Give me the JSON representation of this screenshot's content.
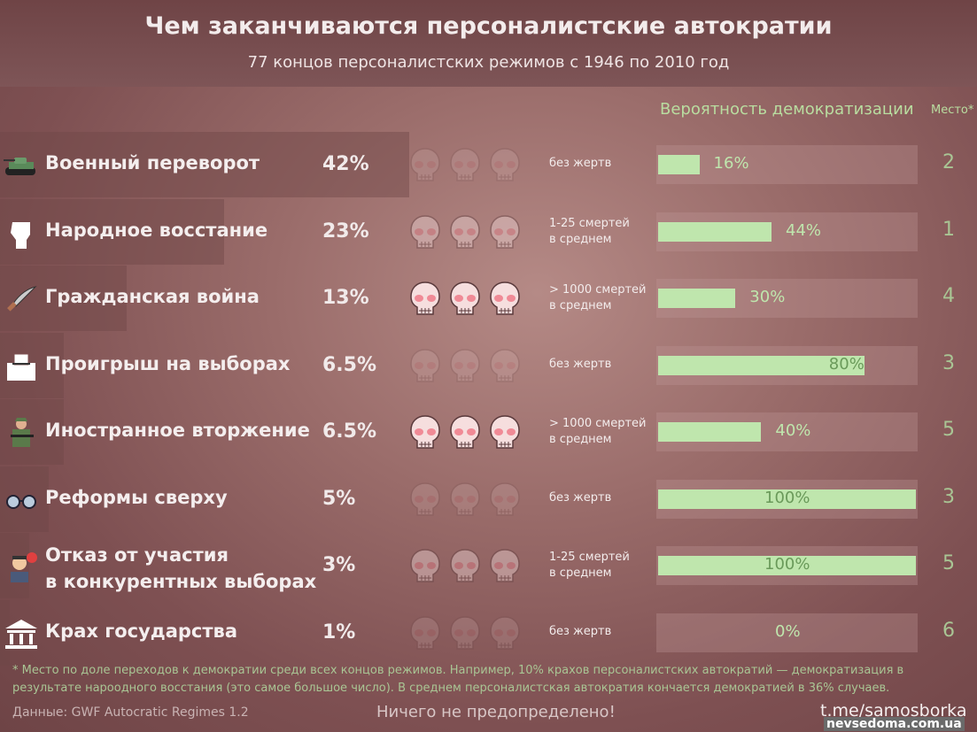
{
  "title": "Чем заканчиваются персоналистские автократии",
  "subtitle": "77 концов персоналистских режимов с 1946 по 2010 год",
  "headers": {
    "probability": "Вероятность демократизации",
    "rank": "Место*"
  },
  "chart_data": {
    "type": "bar",
    "categories": [
      "Военный переворот",
      "Народное восстание",
      "Гражданская война",
      "Проигрыш на выборах",
      "Иностранное вторжение",
      "Реформы сверху",
      "Отказ от участия в конкурентных выборах",
      "Крах государства"
    ],
    "series": [
      {
        "name": "",
        "values": [
          42,
          23,
          13,
          6.5,
          6.5,
          5,
          3,
          1
        ],
        "labels": [
          "42%",
          "23%",
          "13%",
          "6.5%",
          "6.5%",
          "5%",
          "3%",
          "1%"
        ]
      },
      {
        "name": "Вероятность демократизации",
        "values": [
          16,
          44,
          30,
          80,
          40,
          100,
          100,
          0
        ],
        "labels": [
          "16%",
          "44%",
          "30%",
          "80%",
          "40%",
          "100%",
          "100%",
          "0%"
        ]
      }
    ],
    "ylim": [
      0,
      100
    ]
  },
  "rows": [
    {
      "label": "Военный переворот",
      "label2": "",
      "icon": "tank-icon",
      "victims": "без жертв",
      "victims2": "",
      "violence": 0,
      "rank": "2"
    },
    {
      "label": "Народное восстание",
      "label2": "",
      "icon": "fist-icon",
      "victims": "1-25 смертей",
      "victims2": "в среднем",
      "violence": 1,
      "rank": "1"
    },
    {
      "label": "Гражданская война",
      "label2": "",
      "icon": "machete-icon",
      "victims": "> 1000 смертей",
      "victims2": "в среднем",
      "violence": 2,
      "rank": "4"
    },
    {
      "label": "Проигрыш на выборах",
      "label2": "",
      "icon": "ballot-box-icon",
      "victims": "без жертв",
      "victims2": "",
      "violence": 0,
      "rank": "3"
    },
    {
      "label": "Иностранное вторжение",
      "label2": "",
      "icon": "soldier-icon",
      "victims": "> 1000 смертей",
      "victims2": "в среднем",
      "violence": 2,
      "rank": "5"
    },
    {
      "label": "Реформы сверху",
      "label2": "",
      "icon": "glasses-icon",
      "victims": "без жертв",
      "victims2": "",
      "violence": 0,
      "rank": "3"
    },
    {
      "label": "Отказ от участия",
      "label2": "в конкурентных выборах",
      "icon": "official-icon",
      "victims": "1-25 смертей",
      "victims2": "в среднем",
      "violence": 1,
      "rank": "5"
    },
    {
      "label": "Крах государства",
      "label2": "",
      "icon": "ruined-building-icon",
      "victims": "без жертв",
      "victims2": "",
      "violence": 0,
      "rank": "6"
    }
  ],
  "footnote": "* Место по доле переходов к демократии среди всех концов режимов. Например, 10% крахов персоналистских автократий — демократизация в результате нароодного восстания (это самое большое число). В среднем персоналистская автократия кончается демократией в 36% случаев.",
  "source": "Данные: GWF Autocratic Regimes 1.2",
  "slogan": "Ничего не предопределено!",
  "channel": "t.me/samosborka",
  "watermark": "nevsedoma.com.ua",
  "colors": {
    "bar": "#bfe6ad",
    "accent_text": "#b9dda0",
    "skull": "#f6dede",
    "skull_eyes": "#f08a96"
  }
}
